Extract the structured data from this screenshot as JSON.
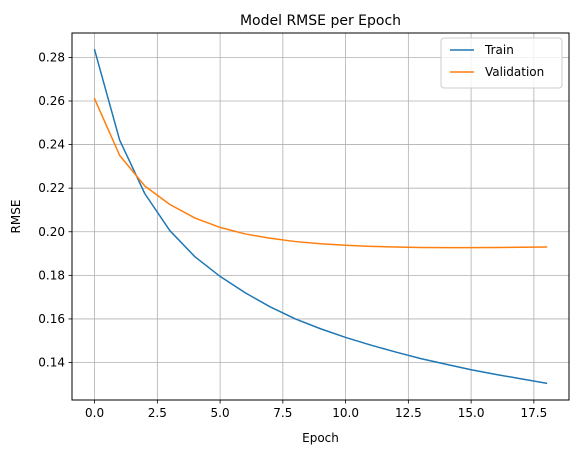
{
  "chart_data": {
    "type": "line",
    "title": "Model RMSE per Epoch",
    "xlabel": "Epoch",
    "ylabel": "RMSE",
    "xlim": [
      -0.9,
      18.9
    ],
    "ylim": [
      0.1228,
      0.2912
    ],
    "xticks": [
      0,
      2.5,
      5,
      7.5,
      10,
      12.5,
      15,
      17.5
    ],
    "xtick_labels": [
      "0.0",
      "2.5",
      "5.0",
      "7.5",
      "10.0",
      "12.5",
      "15.0",
      "17.5"
    ],
    "yticks": [
      0.14,
      0.16,
      0.18,
      0.2,
      0.22,
      0.24,
      0.26,
      0.28
    ],
    "ytick_labels": [
      "0.14",
      "0.16",
      "0.18",
      "0.20",
      "0.22",
      "0.24",
      "0.26",
      "0.28"
    ],
    "grid": true,
    "legend_position": "top-right",
    "x": [
      0,
      1,
      2,
      3,
      4,
      5,
      6,
      7,
      8,
      9,
      10,
      11,
      12,
      13,
      14,
      15,
      16,
      17,
      18
    ],
    "series": [
      {
        "name": "Train",
        "color": "#1f77b4",
        "values": [
          0.2835,
          0.242,
          0.2175,
          0.2005,
          0.1885,
          0.1795,
          0.172,
          0.1655,
          0.16,
          0.1555,
          0.1515,
          0.148,
          0.1448,
          0.1418,
          0.1392,
          0.1367,
          0.1345,
          0.1325,
          0.1305
        ]
      },
      {
        "name": "Validation",
        "color": "#ff7f0e",
        "values": [
          0.261,
          0.235,
          0.221,
          0.2125,
          0.2063,
          0.202,
          0.199,
          0.197,
          0.1955,
          0.1945,
          0.1938,
          0.1933,
          0.193,
          0.1928,
          0.1927,
          0.1927,
          0.1928,
          0.1929,
          0.193
        ]
      }
    ]
  }
}
